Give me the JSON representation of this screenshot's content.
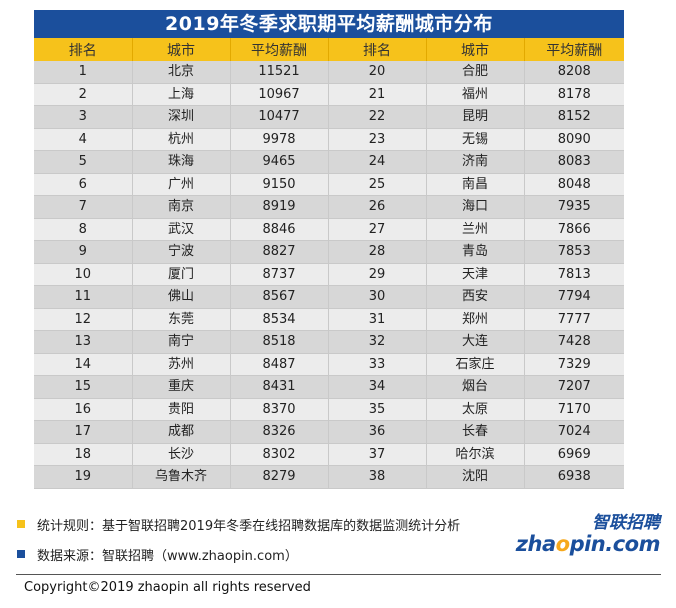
{
  "title": "2019年冬季求职期平均薪酬城市分布",
  "headers": [
    "排名",
    "城市",
    "平均薪酬",
    "排名",
    "城市",
    "平均薪酬"
  ],
  "rows": [
    [
      "1",
      "北京",
      "11521",
      "20",
      "合肥",
      "8208"
    ],
    [
      "2",
      "上海",
      "10967",
      "21",
      "福州",
      "8178"
    ],
    [
      "3",
      "深圳",
      "10477",
      "22",
      "昆明",
      "8152"
    ],
    [
      "4",
      "杭州",
      "9978",
      "23",
      "无锡",
      "8090"
    ],
    [
      "5",
      "珠海",
      "9465",
      "24",
      "济南",
      "8083"
    ],
    [
      "6",
      "广州",
      "9150",
      "25",
      "南昌",
      "8048"
    ],
    [
      "7",
      "南京",
      "8919",
      "26",
      "海口",
      "7935"
    ],
    [
      "8",
      "武汉",
      "8846",
      "27",
      "兰州",
      "7866"
    ],
    [
      "9",
      "宁波",
      "8827",
      "28",
      "青岛",
      "7853"
    ],
    [
      "10",
      "厦门",
      "8737",
      "29",
      "天津",
      "7813"
    ],
    [
      "11",
      "佛山",
      "8567",
      "30",
      "西安",
      "7794"
    ],
    [
      "12",
      "东莞",
      "8534",
      "31",
      "郑州",
      "7777"
    ],
    [
      "13",
      "南宁",
      "8518",
      "32",
      "大连",
      "7428"
    ],
    [
      "14",
      "苏州",
      "8487",
      "33",
      "石家庄",
      "7329"
    ],
    [
      "15",
      "重庆",
      "8431",
      "34",
      "烟台",
      "7207"
    ],
    [
      "16",
      "贵阳",
      "8370",
      "35",
      "太原",
      "7170"
    ],
    [
      "17",
      "成都",
      "8326",
      "36",
      "长春",
      "7024"
    ],
    [
      "18",
      "长沙",
      "8302",
      "37",
      "哈尔滨",
      "6969"
    ],
    [
      "19",
      "乌鲁木齐",
      "8279",
      "38",
      "沈阳",
      "6938"
    ]
  ],
  "notes": {
    "rule": "统计规则：基于智联招聘2019年冬季在线招聘数据库的数据监测统计分析",
    "source": "数据来源：智联招聘（www.zhaopin.com）"
  },
  "logo": {
    "cn": "智联招聘",
    "en_pre": "zha",
    "en_o": "o",
    "en_post": "pin.com"
  },
  "copyright": "Copyright©2019 zhaopin all rights reserved",
  "colors": {
    "title_bg": "#1b4f9c",
    "header_bg": "#f6c21b",
    "row_odd": "#d7d7d7",
    "row_even": "#ececec"
  }
}
